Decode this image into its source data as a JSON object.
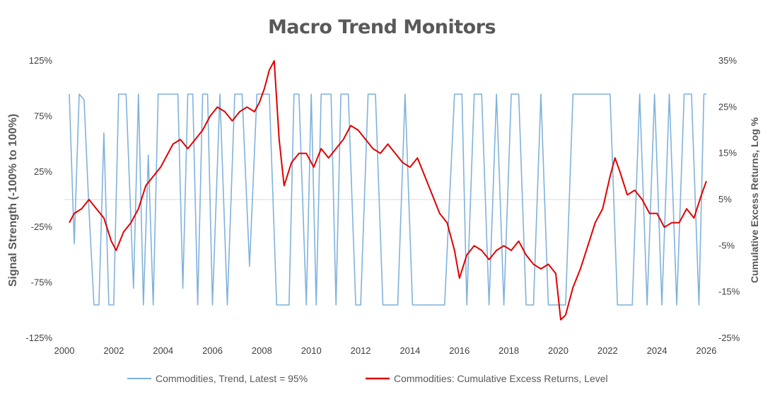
{
  "chart_data": {
    "type": "line",
    "title": "Macro Trend Monitors",
    "ylabel_left": "Signal Strength (-100% to 100%)",
    "ylabel_right": "Cumulative Excess Returns, Log %",
    "x_ticks": [
      "2000",
      "2002",
      "2004",
      "2006",
      "2008",
      "2010",
      "2012",
      "2014",
      "2016",
      "2018",
      "2020",
      "2022",
      "2024",
      "2026"
    ],
    "xlim": [
      2000,
      2026
    ],
    "left_ticks": [
      "125%",
      "75%",
      "25%",
      "-25%",
      "-75%",
      "-125%"
    ],
    "left_tick_values": [
      125,
      75,
      25,
      -25,
      -75,
      -125
    ],
    "ylim_left": [
      -125,
      125
    ],
    "right_ticks": [
      "35%",
      "25%",
      "15%",
      "5%",
      "-5%",
      "-15%",
      "-25%"
    ],
    "right_tick_values": [
      35,
      25,
      15,
      5,
      -5,
      -15,
      -25
    ],
    "ylim_right": [
      -25,
      35
    ],
    "zero_line_left": 0,
    "legend_position": "bottom",
    "series": [
      {
        "name": "Commodities, Trend, Latest = 95%",
        "axis": "left",
        "color": "#7fb2dc",
        "x": [
          2000.2,
          2000.4,
          2000.6,
          2000.8,
          2001.0,
          2001.2,
          2001.4,
          2001.6,
          2001.8,
          2002.0,
          2002.2,
          2002.5,
          2002.8,
          2003.0,
          2003.2,
          2003.4,
          2003.6,
          2003.8,
          2004.0,
          2004.2,
          2004.4,
          2004.6,
          2004.8,
          2005.0,
          2005.2,
          2005.4,
          2005.6,
          2005.8,
          2006.0,
          2006.3,
          2006.6,
          2006.9,
          2007.2,
          2007.5,
          2007.8,
          2008.0,
          2008.3,
          2008.6,
          2008.9,
          2009.1,
          2009.3,
          2009.5,
          2009.8,
          2010.0,
          2010.2,
          2010.4,
          2010.6,
          2010.8,
          2011.0,
          2011.2,
          2011.5,
          2011.8,
          2012.0,
          2012.3,
          2012.6,
          2012.9,
          2013.2,
          2013.5,
          2013.8,
          2014.1,
          2014.4,
          2014.7,
          2015.0,
          2015.4,
          2015.8,
          2016.1,
          2016.3,
          2016.6,
          2016.9,
          2017.2,
          2017.5,
          2017.8,
          2018.1,
          2018.4,
          2018.7,
          2019.0,
          2019.3,
          2019.6,
          2019.9,
          2020.1,
          2020.3,
          2020.6,
          2020.9,
          2021.2,
          2021.5,
          2021.8,
          2022.1,
          2022.4,
          2022.7,
          2023.0,
          2023.3,
          2023.6,
          2023.9,
          2024.2,
          2024.5,
          2024.8,
          2025.1,
          2025.4,
          2025.7,
          2025.9,
          2026.0
        ],
        "values": [
          95,
          -40,
          95,
          90,
          -10,
          -95,
          -95,
          60,
          -95,
          -95,
          95,
          95,
          -80,
          95,
          -95,
          40,
          -95,
          95,
          95,
          95,
          95,
          95,
          -80,
          95,
          95,
          -95,
          95,
          95,
          -95,
          95,
          -95,
          95,
          95,
          -60,
          95,
          95,
          95,
          -95,
          -95,
          -95,
          95,
          95,
          -95,
          95,
          -95,
          95,
          95,
          95,
          -95,
          95,
          95,
          -95,
          -95,
          95,
          95,
          -95,
          -95,
          -95,
          95,
          -95,
          -95,
          -95,
          -95,
          -95,
          95,
          95,
          -95,
          95,
          95,
          -95,
          95,
          -95,
          95,
          95,
          -95,
          -95,
          95,
          -95,
          -95,
          -95,
          -95,
          95,
          95,
          95,
          95,
          95,
          95,
          -95,
          -95,
          -95,
          95,
          -95,
          95,
          -95,
          95,
          -95,
          95,
          95,
          -95,
          95,
          95
        ]
      },
      {
        "name": "Commodities: Cumulative Excess Returns, Level",
        "axis": "right",
        "color": "#e00000",
        "x": [
          2000.2,
          2000.4,
          2000.7,
          2001.0,
          2001.3,
          2001.6,
          2001.9,
          2002.1,
          2002.4,
          2002.7,
          2003.0,
          2003.3,
          2003.6,
          2003.9,
          2004.1,
          2004.4,
          2004.7,
          2005.0,
          2005.3,
          2005.6,
          2005.9,
          2006.2,
          2006.5,
          2006.8,
          2007.1,
          2007.4,
          2007.7,
          2007.9,
          2008.1,
          2008.3,
          2008.5,
          2008.7,
          2008.9,
          2009.2,
          2009.5,
          2009.8,
          2010.1,
          2010.4,
          2010.7,
          2011.0,
          2011.3,
          2011.6,
          2011.9,
          2012.2,
          2012.5,
          2012.8,
          2013.1,
          2013.4,
          2013.7,
          2014.0,
          2014.3,
          2014.6,
          2014.9,
          2015.2,
          2015.5,
          2015.8,
          2016.0,
          2016.3,
          2016.6,
          2016.9,
          2017.2,
          2017.5,
          2017.8,
          2018.1,
          2018.4,
          2018.7,
          2019.0,
          2019.3,
          2019.6,
          2019.9,
          2020.1,
          2020.3,
          2020.6,
          2020.9,
          2021.2,
          2021.5,
          2021.8,
          2022.1,
          2022.3,
          2022.5,
          2022.8,
          2023.1,
          2023.4,
          2023.7,
          2024.0,
          2024.3,
          2024.6,
          2024.9,
          2025.2,
          2025.5,
          2025.8,
          2026.0
        ],
        "values": [
          0,
          2,
          3,
          5,
          3,
          1,
          -4,
          -6,
          -2,
          0,
          3,
          8,
          10,
          12,
          14,
          17,
          18,
          16,
          18,
          20,
          23,
          25,
          24,
          22,
          24,
          25,
          24,
          26,
          29,
          33,
          35,
          18,
          8,
          13,
          15,
          15,
          12,
          16,
          14,
          16,
          18,
          21,
          20,
          18,
          16,
          15,
          17,
          15,
          13,
          12,
          14,
          10,
          6,
          2,
          0,
          -6,
          -12,
          -7,
          -5,
          -6,
          -8,
          -6,
          -5,
          -6,
          -4,
          -7,
          -9,
          -10,
          -9,
          -11,
          -21,
          -20,
          -14,
          -10,
          -5,
          0,
          3,
          10,
          14,
          11,
          6,
          7,
          5,
          2,
          2,
          -1,
          0,
          0,
          3,
          1,
          6,
          9
        ]
      }
    ]
  }
}
